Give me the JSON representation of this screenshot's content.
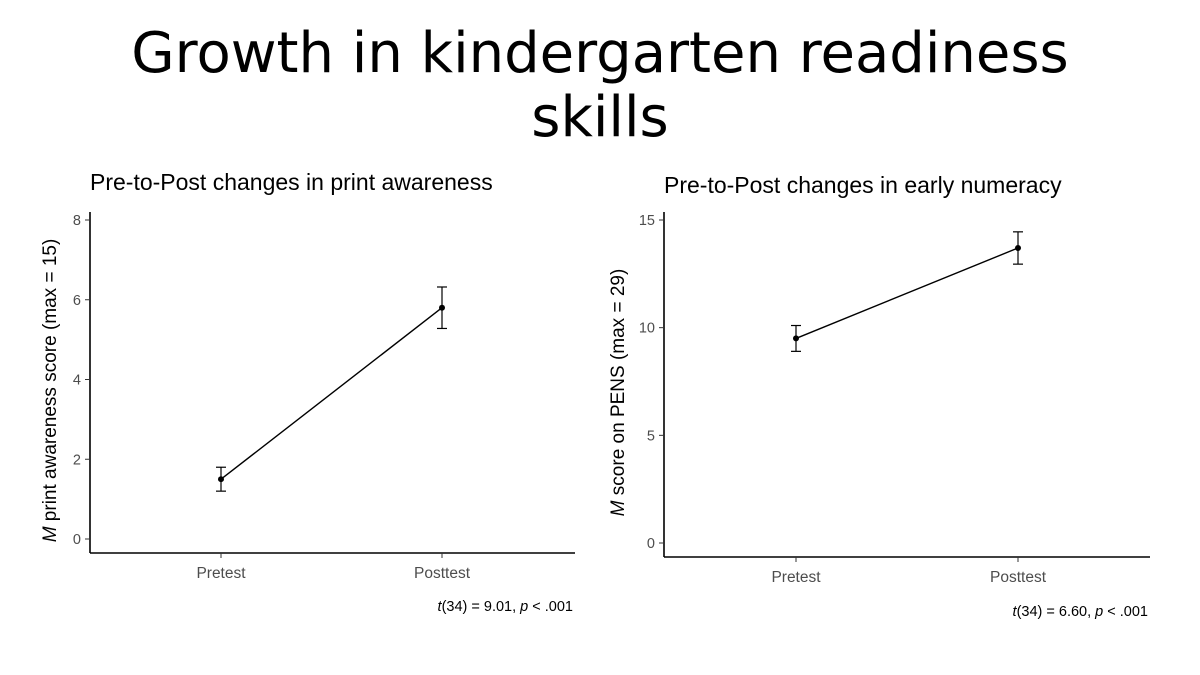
{
  "slide": {
    "title": "Growth in kindergarten readiness skills"
  },
  "chart_data": [
    {
      "type": "line",
      "title": "Pre-to-Post changes in print awareness",
      "ylabel_italic": "M",
      "ylabel": " print awareness score (max = 15)",
      "xlabel": "",
      "categories": [
        "Pretest",
        "Posttest"
      ],
      "values": [
        1.5,
        5.8
      ],
      "error_low": [
        1.2,
        5.28
      ],
      "error_high": [
        1.8,
        6.32
      ],
      "ylim": [
        0,
        8
      ],
      "yticks": [
        0,
        2,
        4,
        6,
        8
      ],
      "ytick_labels": [
        "0",
        "2",
        "4",
        "6",
        "8"
      ],
      "grid": false,
      "annotation": {
        "pre": "",
        "italic1": "t",
        "mid": "(34) = 9.01, ",
        "italic2": "p",
        "post": " < .001"
      }
    },
    {
      "type": "line",
      "title": "Pre-to-Post changes in early numeracy",
      "ylabel_italic": "M",
      "ylabel": " score on PENS (max = 29)",
      "xlabel": "",
      "categories": [
        "Pretest",
        "Posttest"
      ],
      "values": [
        9.5,
        13.7
      ],
      "error_low": [
        8.9,
        12.95
      ],
      "error_high": [
        10.1,
        14.45
      ],
      "ylim": [
        0,
        15
      ],
      "yticks": [
        0,
        5,
        10,
        15
      ],
      "ytick_labels": [
        "0",
        "5",
        "10",
        "15"
      ],
      "grid": false,
      "annotation": {
        "pre": "",
        "italic1": "t",
        "mid": "(34) = 6.60, ",
        "italic2": "p",
        "post": " < .001"
      }
    }
  ]
}
